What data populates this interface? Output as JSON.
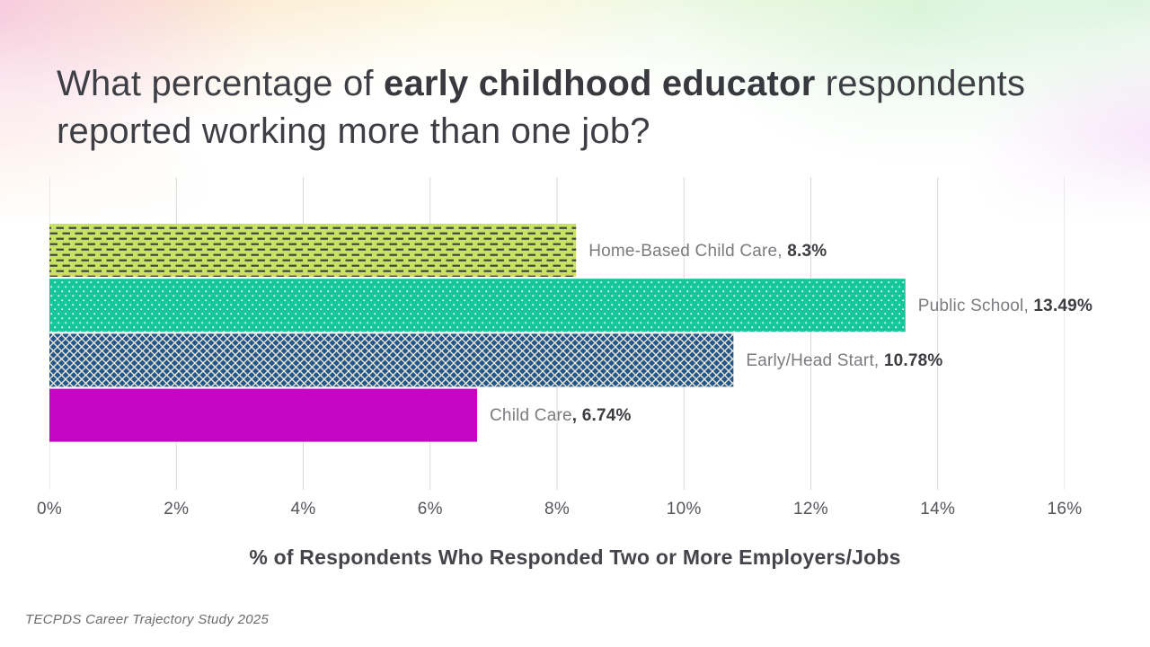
{
  "slide": {
    "title": {
      "prefix": "What percentage of ",
      "bold": "early childhood educator",
      "suffix": " respondents reported working more than one job?"
    },
    "footer": "TECPDS Career Trajectory Study 2025"
  },
  "chart_data": {
    "type": "bar",
    "orientation": "horizontal",
    "title": "What percentage of early childhood educator respondents reported working more than one job?",
    "categories": [
      "Home-Based Child Care",
      "Public School",
      "Early/Head Start",
      "Child Care"
    ],
    "values": [
      8.3,
      13.49,
      10.78,
      6.74
    ],
    "value_labels": [
      "8.3%",
      "13.49%",
      "10.78%",
      "6.74%"
    ],
    "labels": [
      {
        "text": "Home-Based Child Care, ",
        "bold": "8.3%"
      },
      {
        "text": "Public School, ",
        "bold": "13.49%"
      },
      {
        "text": "Early/Head Start, ",
        "bold": "10.78%"
      },
      {
        "text": "Child Care",
        "bold": ", 6.74%"
      }
    ],
    "xlabel": "% of Respondents Who Responded Two or More Employers/Jobs",
    "ylabel": "",
    "xlim": [
      0,
      16
    ],
    "xticks": [
      "0%",
      "2%",
      "4%",
      "6%",
      "8%",
      "10%",
      "12%",
      "14%",
      "16%"
    ],
    "grid": "vertical",
    "gridline_color": "#d9d9d9",
    "legend": false,
    "bar_styles": [
      {
        "fill": "#c7e265",
        "pattern": "dash",
        "pattern_color": "#3d4742"
      },
      {
        "fill": "#13c79a",
        "pattern": "dots",
        "pattern_color": "#ffffff"
      },
      {
        "fill": "#235689",
        "pattern": "diamond",
        "pattern_color": "#efe9d8"
      },
      {
        "fill": "#c405c4",
        "pattern": "solid",
        "pattern_color": ""
      }
    ]
  }
}
